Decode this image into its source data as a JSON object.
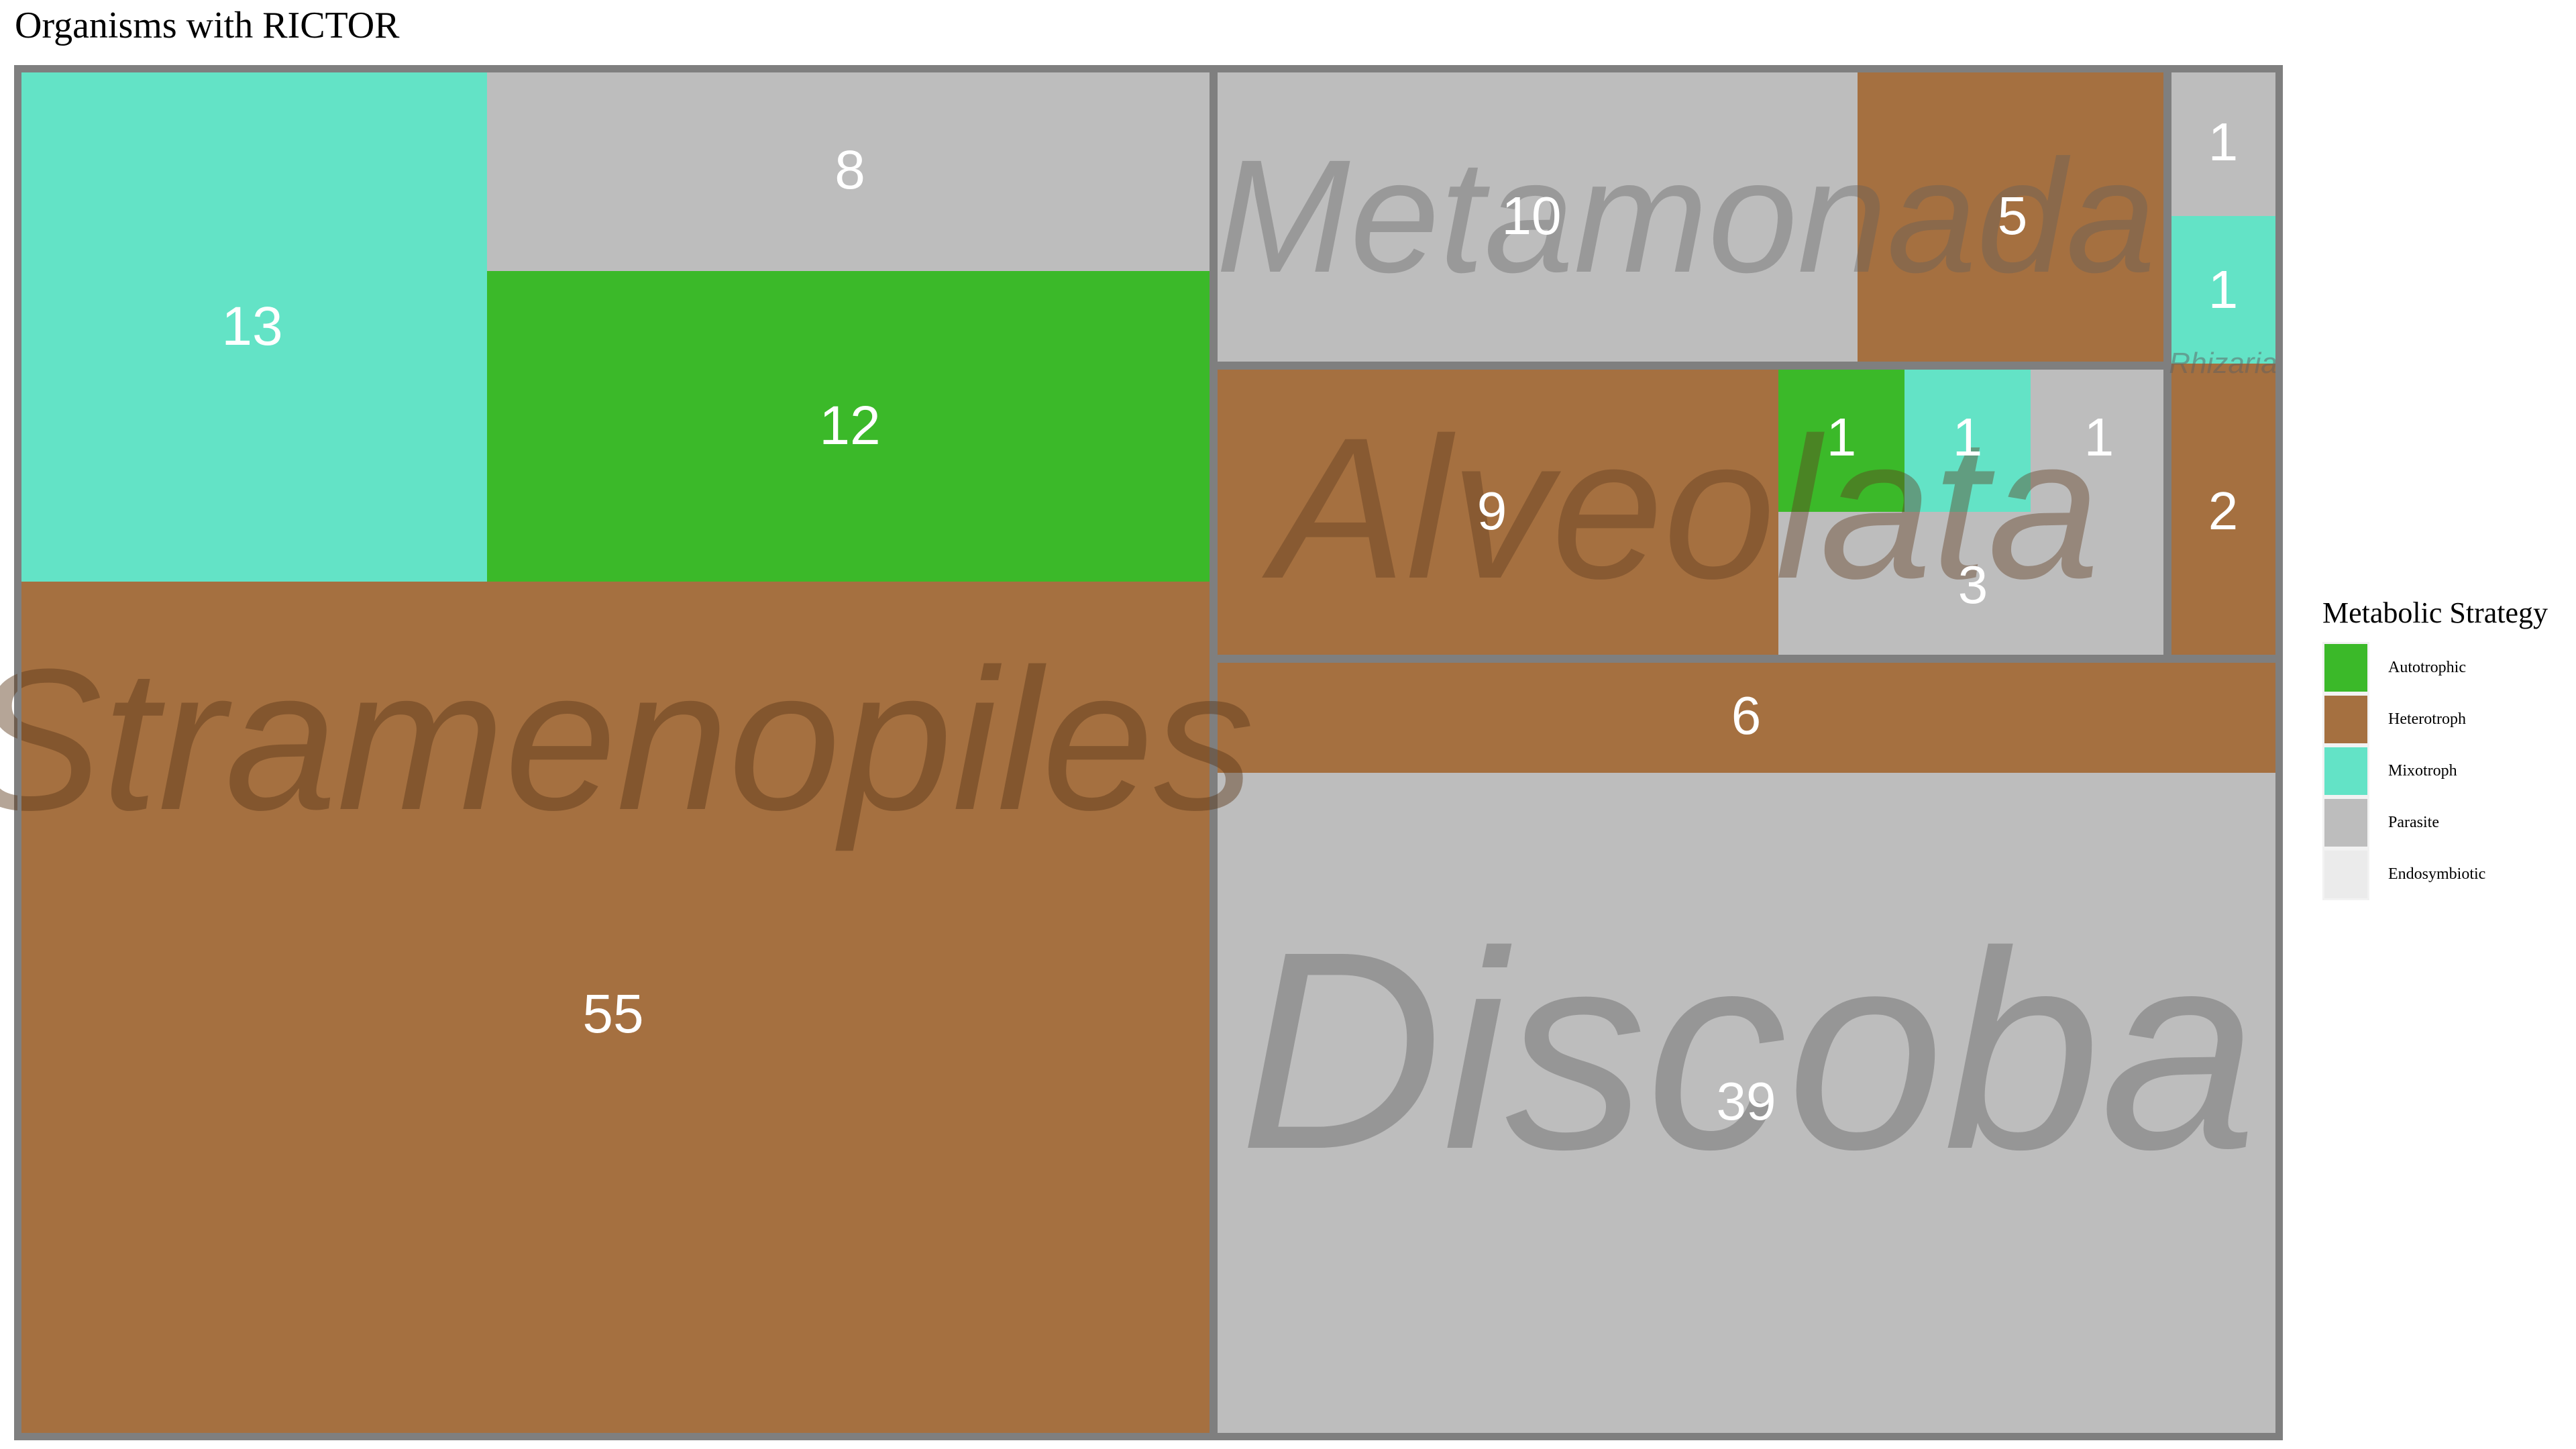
{
  "chart_data": {
    "type": "treemap",
    "title": "Organisms with RICTOR",
    "legend": {
      "title": "Metabolic Strategy",
      "placement": "right",
      "entries": [
        {
          "name": "Autotrophic",
          "color": "#3bb929"
        },
        {
          "name": "Heterotroph",
          "color": "#a57040"
        },
        {
          "name": "Mixotroph",
          "color": "#63e3c6"
        },
        {
          "name": "Parasite",
          "color": "#bdbdbd"
        },
        {
          "name": "Endosymbiotic",
          "color": "#ebebeb"
        }
      ]
    },
    "groups": [
      {
        "name": "Stramenopiles",
        "cells": [
          {
            "strategy": "Mixotroph",
            "value": 13
          },
          {
            "strategy": "Parasite",
            "value": 8
          },
          {
            "strategy": "Autotrophic",
            "value": 12
          },
          {
            "strategy": "Heterotroph",
            "value": 55
          }
        ]
      },
      {
        "name": "Metamonada",
        "cells": [
          {
            "strategy": "Parasite",
            "value": 10
          },
          {
            "strategy": "Heterotroph",
            "value": 5
          }
        ]
      },
      {
        "name": "Rhizaria",
        "cells": [
          {
            "strategy": "Parasite",
            "value": 1
          },
          {
            "strategy": "Mixotroph",
            "value": 1
          },
          {
            "strategy": "Heterotroph",
            "value": 2
          }
        ]
      },
      {
        "name": "Alveolata",
        "cells": [
          {
            "strategy": "Heterotroph",
            "value": 9
          },
          {
            "strategy": "Autotrophic",
            "value": 1
          },
          {
            "strategy": "Mixotroph",
            "value": 1
          },
          {
            "strategy": "Parasite",
            "value": 1
          },
          {
            "strategy": "Parasite",
            "value": 3
          }
        ]
      },
      {
        "name": "Discoba",
        "cells": [
          {
            "strategy": "Heterotroph",
            "value": 6
          },
          {
            "strategy": "Parasite",
            "value": 39
          }
        ]
      }
    ]
  }
}
